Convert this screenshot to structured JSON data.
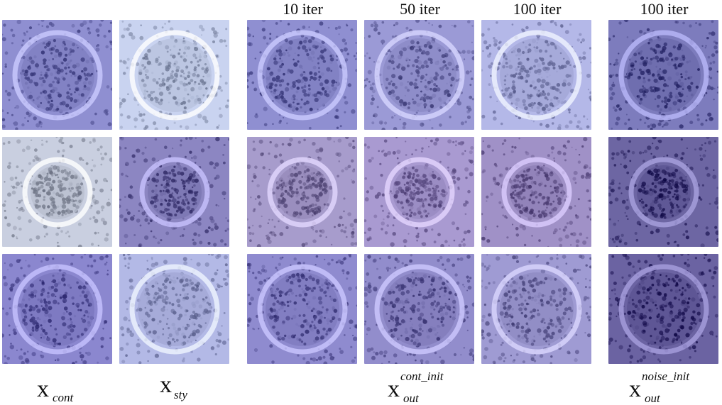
{
  "column_headers": [
    "10 iter",
    "50 iter",
    "100 iter",
    "100 iter"
  ],
  "bottom_labels": {
    "content": {
      "base": "x",
      "sub": "cont"
    },
    "style": {
      "base": "x",
      "sub": "sty"
    },
    "out_cont": {
      "base": "x",
      "sub": "out",
      "sup": "cont_init"
    },
    "out_noise": {
      "base": "x",
      "sub": "out",
      "sup": "noise_init"
    }
  },
  "palette": {
    "row1": [
      "#8f8fd1",
      "#c9d3f0",
      "#8f8fd1",
      "#9b9ad6",
      "#b4b8e8",
      "#7d7cbd"
    ],
    "row2": [
      "#c9cfe0",
      "#8c86c2",
      "#a79ccc",
      "#a99ad1",
      "#a091c7",
      "#6d66a3"
    ],
    "row3": [
      "#8b87cf",
      "#b3b9e6",
      "#8f8bcf",
      "#928dcc",
      "#9f9bd3",
      "#6b63a2"
    ]
  }
}
